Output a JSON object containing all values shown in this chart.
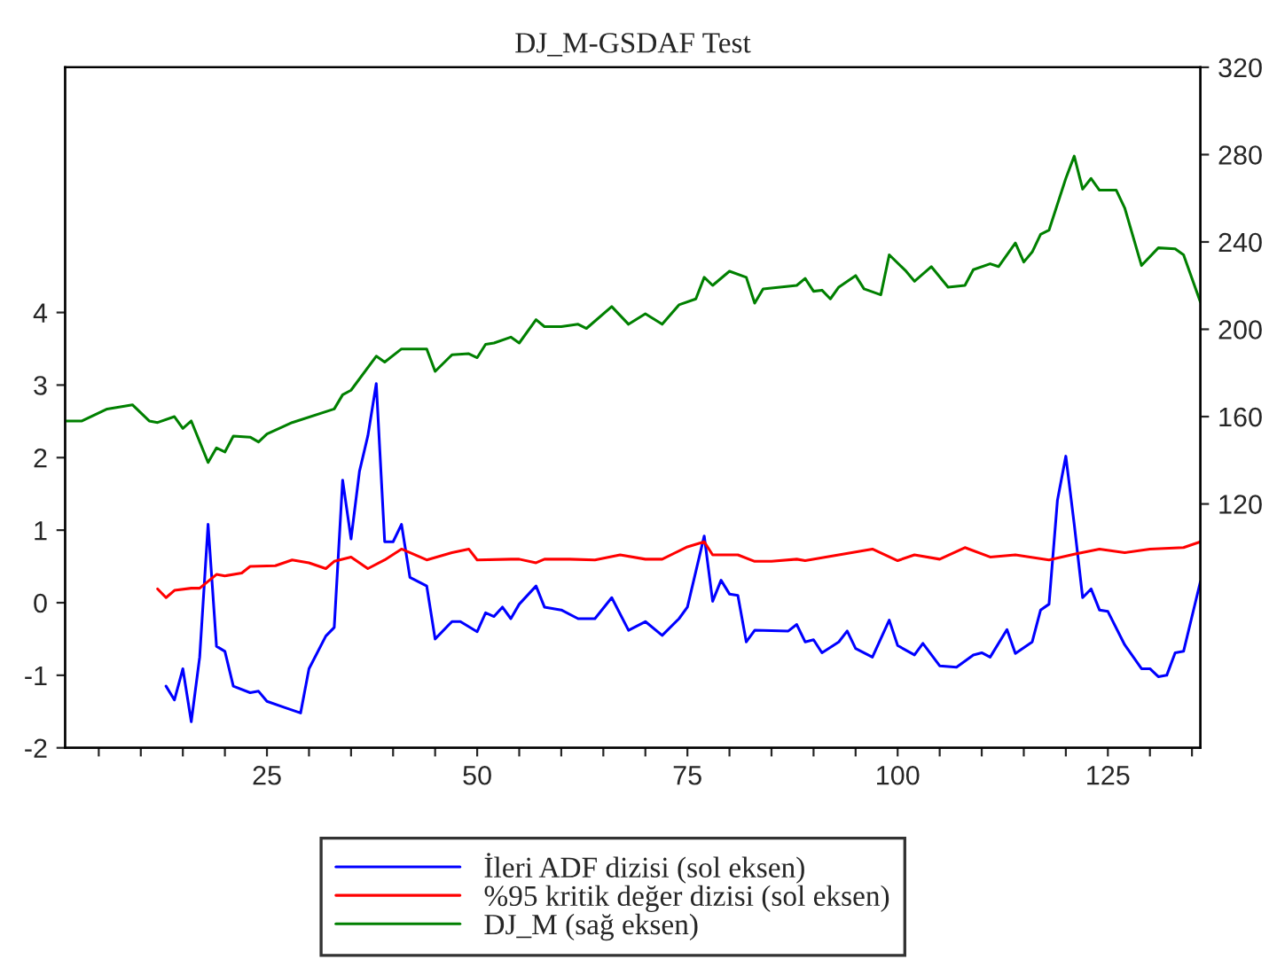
{
  "chart_data": {
    "type": "line",
    "title": "DJ_M-GSDAF Test",
    "legend": "bottom",
    "grid": false,
    "xlim": [
      1,
      136
    ],
    "xticks": [
      {
        "value": 5,
        "label": null
      },
      {
        "value": 10,
        "label": null
      },
      {
        "value": 15,
        "label": null
      },
      {
        "value": 20,
        "label": null
      },
      25,
      {
        "value": 30,
        "label": null
      },
      {
        "value": 35,
        "label": null
      },
      {
        "value": 40,
        "label": null
      },
      {
        "value": 45,
        "label": null
      },
      50,
      {
        "value": 55,
        "label": null
      },
      {
        "value": 60,
        "label": null
      },
      {
        "value": 65,
        "label": null
      },
      {
        "value": 70,
        "label": null
      },
      75,
      {
        "value": 80,
        "label": null
      },
      {
        "value": 85,
        "label": null
      },
      {
        "value": 90,
        "label": null
      },
      {
        "value": 95,
        "label": null
      },
      100,
      {
        "value": 105,
        "label": null
      },
      {
        "value": 110,
        "label": null
      },
      {
        "value": 115,
        "label": null
      },
      {
        "value": 120,
        "label": null
      },
      125,
      {
        "value": 130,
        "label": null
      },
      {
        "value": 135,
        "label": null
      }
    ],
    "ylim": [
      -2,
      7.38
    ],
    "yticks": [
      -2,
      -1,
      0,
      1,
      2,
      3,
      4
    ],
    "y2lim": [
      8.3,
      320
    ],
    "y2ticks": [
      120,
      160,
      200,
      240,
      280,
      320
    ],
    "series": [
      {
        "name": "İleri ADF dizisi (sol eksen)",
        "color": "#0000ff",
        "x": [
          13,
          14,
          15,
          16,
          17,
          18,
          19,
          20,
          21,
          23,
          24,
          25,
          27,
          29,
          30,
          32,
          33,
          34,
          35,
          36,
          37,
          38,
          39,
          40,
          41,
          42,
          44,
          45,
          47,
          48,
          50,
          51,
          52,
          53,
          54,
          55,
          57,
          58,
          60,
          62,
          64,
          66,
          68,
          70,
          72,
          74,
          75,
          77,
          78,
          79,
          80,
          81,
          82,
          83,
          87,
          88,
          89,
          90,
          91,
          93,
          94,
          95,
          97,
          99,
          100,
          102,
          103,
          105,
          107,
          109,
          110,
          111,
          113,
          114,
          116,
          117,
          118,
          119,
          120,
          121,
          122,
          123,
          124,
          125,
          127,
          129,
          130,
          131,
          132,
          133,
          134,
          136
        ],
        "values": [
          -1.15,
          -1.34,
          -0.91,
          -1.64,
          -0.75,
          1.08,
          -0.6,
          -0.67,
          -1.15,
          -1.24,
          -1.22,
          -1.36,
          -1.44,
          -1.52,
          -0.91,
          -0.46,
          -0.34,
          1.69,
          0.88,
          1.81,
          2.3,
          3.02,
          0.84,
          0.84,
          1.08,
          0.35,
          0.23,
          -0.5,
          -0.26,
          -0.26,
          -0.4,
          -0.14,
          -0.19,
          -0.06,
          -0.22,
          -0.02,
          0.23,
          -0.06,
          -0.1,
          -0.22,
          -0.22,
          0.07,
          -0.38,
          -0.26,
          -0.45,
          -0.22,
          -0.06,
          0.92,
          0.02,
          0.31,
          0.12,
          0.1,
          -0.54,
          -0.38,
          -0.39,
          -0.3,
          -0.54,
          -0.51,
          -0.69,
          -0.54,
          -0.39,
          -0.63,
          -0.75,
          -0.24,
          -0.59,
          -0.72,
          -0.56,
          -0.87,
          -0.89,
          -0.72,
          -0.69,
          -0.75,
          -0.37,
          -0.7,
          -0.54,
          -0.1,
          -0.02,
          1.41,
          2.02,
          1.08,
          0.07,
          0.19,
          -0.1,
          -0.12,
          -0.58,
          -0.91,
          -0.91,
          -1.02,
          -1.0,
          -0.69,
          -0.67,
          0.29
        ]
      },
      {
        "name": "%95 kritik değer dizisi (sol eksen)",
        "color": "#ff0000",
        "x": [
          12,
          13,
          14,
          16,
          17,
          19,
          20,
          22,
          23,
          26,
          28,
          30,
          32,
          33,
          35,
          37,
          39,
          41,
          44,
          47,
          49,
          50,
          54,
          55,
          57,
          58,
          61,
          64,
          67,
          70,
          72,
          75,
          77,
          78,
          81,
          83,
          85,
          88,
          89,
          93,
          97,
          100,
          102,
          105,
          108,
          111,
          114,
          118,
          121,
          124,
          127,
          130,
          134,
          136
        ],
        "values": [
          0.19,
          0.07,
          0.17,
          0.2,
          0.2,
          0.39,
          0.37,
          0.41,
          0.5,
          0.51,
          0.59,
          0.55,
          0.47,
          0.57,
          0.63,
          0.47,
          0.59,
          0.74,
          0.59,
          0.69,
          0.74,
          0.59,
          0.6,
          0.6,
          0.55,
          0.6,
          0.6,
          0.59,
          0.66,
          0.6,
          0.6,
          0.77,
          0.84,
          0.66,
          0.66,
          0.57,
          0.57,
          0.6,
          0.58,
          0.66,
          0.74,
          0.58,
          0.66,
          0.6,
          0.76,
          0.63,
          0.66,
          0.59,
          0.67,
          0.74,
          0.69,
          0.74,
          0.76,
          0.84
        ]
      },
      {
        "name": "DJ_M (sağ eksen)",
        "color": "#008000",
        "axis": "y2",
        "x": [
          1,
          3,
          6,
          9,
          11,
          12,
          14,
          15,
          16,
          18,
          19,
          20,
          21,
          23,
          24,
          25,
          28,
          33,
          34,
          35,
          38,
          39,
          41,
          44,
          45,
          47,
          49,
          50,
          51,
          52,
          54,
          55,
          57,
          58,
          60,
          62,
          63,
          66,
          68,
          70,
          72,
          74,
          76,
          77,
          78,
          80,
          82,
          83,
          84,
          88,
          89,
          90,
          91,
          92,
          93,
          95,
          96,
          98,
          99,
          101,
          102,
          104,
          106,
          108,
          109,
          111,
          112,
          114,
          115,
          116,
          117,
          118,
          120,
          121,
          122,
          123,
          124,
          126,
          127,
          129,
          131,
          133,
          134,
          136
        ],
        "values": [
          158,
          158,
          163.5,
          165.4,
          158,
          157.3,
          160,
          154.6,
          158,
          139,
          145.7,
          143.8,
          151.1,
          150.6,
          148.4,
          152,
          157.3,
          163.5,
          170,
          172.1,
          187.7,
          185,
          191,
          191,
          180.7,
          188.3,
          188.8,
          187,
          193.1,
          193.7,
          196.4,
          193.7,
          204.4,
          201.2,
          201.2,
          202.3,
          200.4,
          210.4,
          202.3,
          207.1,
          202.3,
          211.2,
          213.9,
          223.8,
          220.1,
          226.6,
          223.8,
          212,
          218.5,
          220.1,
          223.3,
          217.4,
          217.9,
          213.9,
          219.3,
          224.6,
          218.5,
          215.8,
          234.1,
          226.6,
          222,
          228.7,
          219.3,
          220.1,
          227.3,
          230,
          228.7,
          239.5,
          230.8,
          235.4,
          243.5,
          245.4,
          269.1,
          279.3,
          264.2,
          269.1,
          263.7,
          263.7,
          255.6,
          229.2,
          237.3,
          236.8,
          234.1,
          212.5
        ]
      }
    ]
  }
}
